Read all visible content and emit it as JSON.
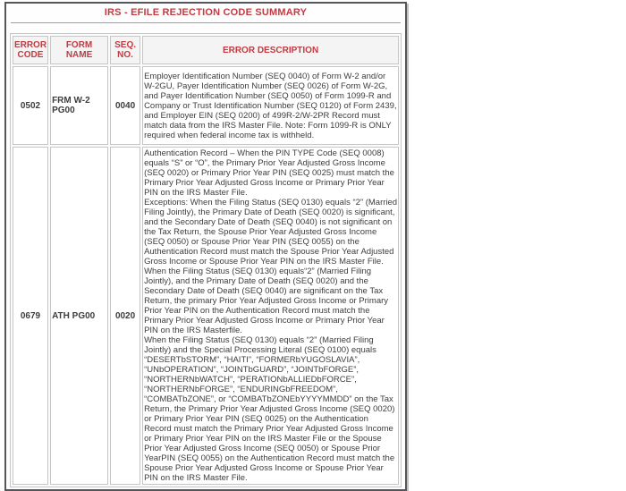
{
  "page": {
    "title": "IRS - EFILE REJECTION CODE SUMMARY"
  },
  "colors": {
    "accent_red": "#c23b42",
    "body_text": "#3d3d3d",
    "cell_border": "#c6c6c6",
    "header_bg": "#f4f4f4",
    "frame_border": "#56565a"
  },
  "table": {
    "headers": [
      "ERROR CODE",
      "FORM NAME",
      "SEQ. NO.",
      "ERROR DESCRIPTION"
    ],
    "rows": [
      {
        "error_code": "0502",
        "form_name": "FRM W-2 PG00",
        "seq_no": "0040",
        "description_paragraphs": [
          "Employer Identification Number (SEQ 0040) of Form W-2 and/or W-2GU, Payer Identification Number (SEQ 0026) of Form W-2G, and Payer Identification Number (SEQ 0050) of Form 1099-R and Company or Trust Identification Number (SEQ 0120) of Form 2439, and Employer EIN (SEQ 0200) of 499R-2/W-2PR Record must match data from the IRS Master File. Note: Form 1099-R is ONLY required when federal income tax is withheld."
        ]
      },
      {
        "error_code": "0679",
        "form_name": "ATH PG00",
        "seq_no": "0020",
        "description_paragraphs": [
          "Authentication Record – When the PIN TYPE Code (SEQ 0008) equals “S” or “O”, the Primary Prior Year Adjusted Gross Income (SEQ 0020) or Primary Prior Year PIN (SEQ 0025) must match the Primary Prior Year Adjusted Gross Income or Primary Prior Year PIN on the IRS Master File.",
          "Exceptions: When the Filing Status (SEQ 0130) equals “2” (Married Filing Jointly), the Primary Date of Death (SEQ 0020) is significant, and the Secondary Date of Death (SEQ 0040) is not significant on the Tax Return, the Spouse Prior Year Adjusted Gross Income (SEQ 0050) or Spouse Prior Year PIN (SEQ 0055) on the Authentication Record must match the Spouse Prior Year Adjusted Gross Income or Spouse Prior Year PIN on the IRS Master File.",
          "When the Filing Status (SEQ 0130) equals“2” (Married Filing Jointly), and the Primary Date of Death (SEQ 0020) and the Secondary Date of Death (SEQ 0040) are significant on the Tax Return, the primary Prior Year Adjusted Gross Income or Primary Prior Year PIN on the Authentication Record must match the Primary Prior Year Adjusted Gross Income or Primary Prior Year PIN on the IRS Masterfile.",
          "When the Filing Status (SEQ 0130) equals “2” (Married Filing Jointly) and the Special Processing Literal (SEQ 0100) equals “DESERTbSTORM”, “HAITI”, “FORMERbYUGOSLAVIA”, “UNbOPERATION”, “JOINTbGUARD”, “JOINTbFORGE”, “NORTHERNbWATCH”, “PERATIONbALLIEDbFORCE”, “NORTHERNbFORGE”, “ENDURINGbFREEDOM”, “COMBATbZONE”, or “COMBATbZONEbYYYYMMDD” on the Tax Return, the Primary Prior Year Adjusted Gross Income (SEQ 0020) or Primary Prior Year PIN (SEQ 0025) on the Authentication Record must match the Primary Prior Year Adjusted Gross Income or Primary Prior Year PIN on the IRS Master File or the Spouse Prior Year Adjusted Gross Income (SEQ 0050) or Spouse Prior YearPIN (SEQ 0055) on the Authentication Record must match the Spouse Prior Year Adjusted Gross Income or Spouse Prior Year PIN on the IRS Master File."
        ]
      }
    ]
  }
}
